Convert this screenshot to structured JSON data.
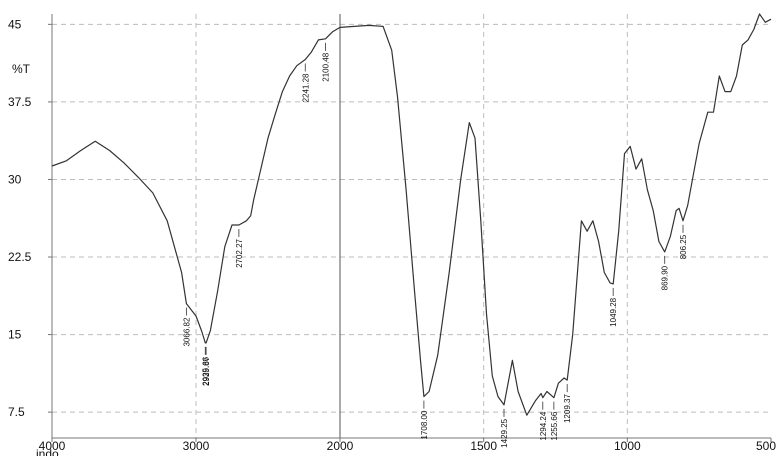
{
  "chart_data": {
    "type": "line",
    "title": "",
    "xlabel": "indo",
    "ylabel": "%T",
    "xlim": [
      4000,
      500
    ],
    "ylim": [
      5,
      46
    ],
    "x_ticks": [
      "4000",
      "3000",
      "2000",
      "1500",
      "1000",
      "500"
    ],
    "y_ticks": [
      "45",
      "37.5",
      "30",
      "22.5",
      "15",
      "7.5"
    ],
    "grid": true,
    "colors": {
      "line": "#333333",
      "grid": "#bdbdbd",
      "axis": "#777777"
    },
    "peak_labels": [
      {
        "text": "3066.82",
        "x": 3066.82,
        "y": 18.0
      },
      {
        "text": "2935.66",
        "x": 2935.66,
        "y": 14.2
      },
      {
        "text": "2929.87",
        "x": 2929.87,
        "y": 14.2
      },
      {
        "text": "2702.27",
        "x": 2702.27,
        "y": 25.6
      },
      {
        "text": "2241.28",
        "x": 2241.28,
        "y": 41.6
      },
      {
        "text": "2100.48",
        "x": 2100.48,
        "y": 43.6
      },
      {
        "text": "1708.00",
        "x": 1708.0,
        "y": 9.0
      },
      {
        "text": "1429.25",
        "x": 1429.25,
        "y": 8.2
      },
      {
        "text": "1294.24",
        "x": 1294.24,
        "y": 8.9
      },
      {
        "text": "1255.66",
        "x": 1255.66,
        "y": 8.9
      },
      {
        "text": "1209.37",
        "x": 1209.37,
        "y": 10.6
      },
      {
        "text": "1049.28",
        "x": 1049.28,
        "y": 19.9
      },
      {
        "text": "869.90",
        "x": 869.9,
        "y": 23.0
      },
      {
        "text": "806.25",
        "x": 806.25,
        "y": 26.0
      }
    ],
    "series": [
      {
        "x": [
          4000,
          3900,
          3800,
          3700,
          3600,
          3500,
          3400,
          3300,
          3200,
          3100,
          3066.82,
          3000,
          2960,
          2935.66,
          2929.87,
          2900,
          2850,
          2800,
          2750,
          2702.27,
          2650,
          2620,
          2600,
          2550,
          2500,
          2450,
          2400,
          2350,
          2300,
          2241.28,
          2200,
          2150,
          2100.48,
          2050,
          2000,
          1950,
          1900,
          1850,
          1820,
          1800,
          1770,
          1740,
          1720,
          1708.0,
          1690,
          1660,
          1620,
          1580,
          1550,
          1530,
          1510,
          1490,
          1470,
          1450,
          1429.25,
          1400,
          1380,
          1350,
          1320,
          1300,
          1294.24,
          1280,
          1255.66,
          1240,
          1220,
          1209.37,
          1190,
          1160,
          1140,
          1120,
          1100,
          1080,
          1060,
          1049.28,
          1030,
          1010,
          990,
          970,
          950,
          930,
          910,
          890,
          869.9,
          850,
          830,
          820,
          806.25,
          790,
          770,
          750,
          720,
          700,
          680,
          660,
          640,
          620,
          600,
          580,
          560,
          540,
          520,
          500
        ],
        "y": [
          31.3,
          31.8,
          32.8,
          33.7,
          32.8,
          31.6,
          30.2,
          28.7,
          26.0,
          21.0,
          18.0,
          16.8,
          15.3,
          14.2,
          14.2,
          15.4,
          19.2,
          23.5,
          25.6,
          25.6,
          26.0,
          26.5,
          28.0,
          31.0,
          34.0,
          36.3,
          38.5,
          40.0,
          41.0,
          41.6,
          42.3,
          43.5,
          43.6,
          44.3,
          44.7,
          44.8,
          44.9,
          44.8,
          42.5,
          38.0,
          29.0,
          19.0,
          12.5,
          9.0,
          9.5,
          13.0,
          21.0,
          30.0,
          35.5,
          34.0,
          26.0,
          17.0,
          11.0,
          9.0,
          8.2,
          12.5,
          9.5,
          7.2,
          8.6,
          9.3,
          8.9,
          9.5,
          8.9,
          10.3,
          10.8,
          10.6,
          15.0,
          26.0,
          25.0,
          26.0,
          24.0,
          21.0,
          20.0,
          19.9,
          25.0,
          32.5,
          33.2,
          31.0,
          32.0,
          29.0,
          27.0,
          24.0,
          23.0,
          24.5,
          27.0,
          27.2,
          26.0,
          27.5,
          30.5,
          33.5,
          36.5,
          36.5,
          40.0,
          38.5,
          38.5,
          40.0,
          43.0,
          43.5,
          44.5,
          46.0,
          45.2,
          45.5
        ]
      }
    ]
  }
}
